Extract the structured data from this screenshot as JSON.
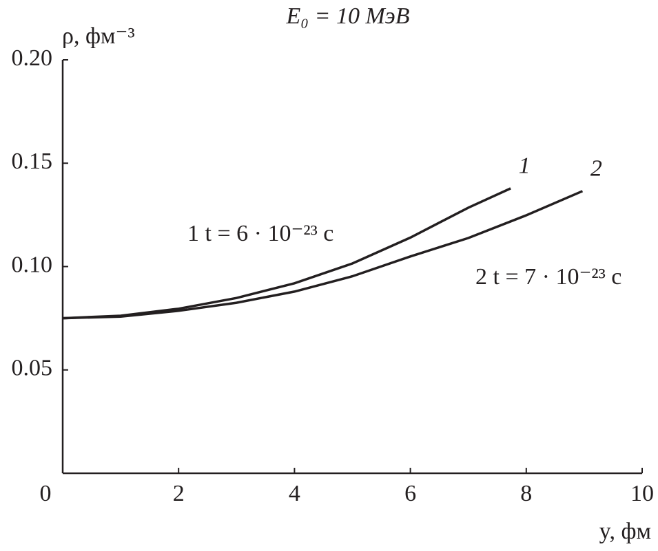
{
  "chart_data": {
    "type": "line",
    "title": "E₀ = 10 МэВ",
    "y_label": "ρ, фм⁻³",
    "x_label": "y, фм",
    "xlim": [
      0,
      10
    ],
    "xticks": [
      0,
      2,
      4,
      6,
      8,
      10
    ],
    "ylim": [
      0,
      0.2
    ],
    "yticks": [
      {
        "value": 0.05,
        "label": "0.05"
      },
      {
        "value": 0.1,
        "label": "0.10"
      },
      0.15,
      {
        "value": 0.2,
        "label": "0.20"
      }
    ],
    "series": [
      {
        "name": "1",
        "color": "#231f20",
        "x": [
          0,
          1,
          2,
          3,
          4,
          5,
          6,
          7,
          7.73
        ],
        "values": [
          0.075,
          0.0762,
          0.0796,
          0.0848,
          0.0919,
          0.1015,
          0.114,
          0.1285,
          0.1378
        ]
      },
      {
        "name": "2",
        "color": "#231f20",
        "x": [
          0,
          1,
          2,
          3,
          4,
          5,
          6,
          7,
          8,
          8.97
        ],
        "values": [
          0.075,
          0.0758,
          0.0786,
          0.0825,
          0.0879,
          0.0953,
          0.1049,
          0.1138,
          0.1248,
          0.1365
        ]
      }
    ],
    "annotations": [
      "1 t = 6 · 10⁻²³ с",
      "2 t = 7 · 10⁻²³ с"
    ]
  }
}
